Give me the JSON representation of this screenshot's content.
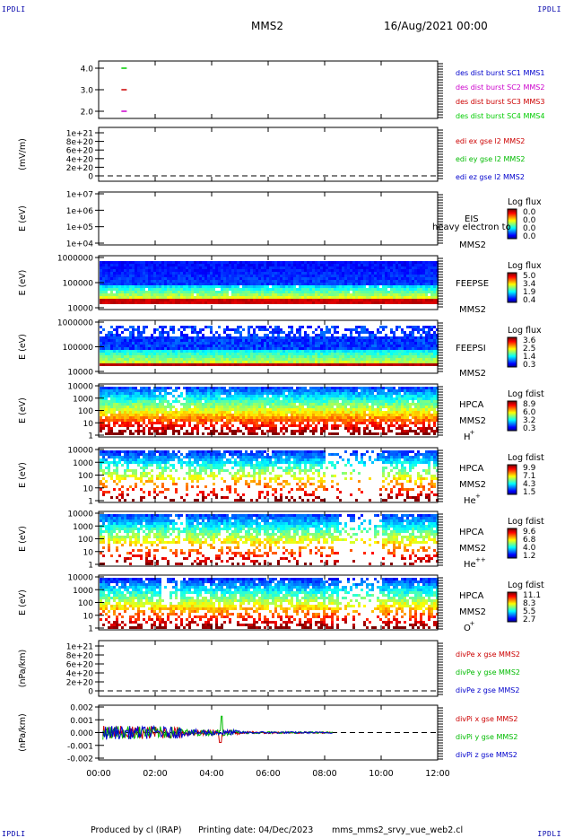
{
  "corner_label": "IPDLI",
  "header": {
    "spacecraft": "MMS2",
    "date": "16/Aug/2021 00:00"
  },
  "footer": {
    "produced_by": "Produced by cl (IRAP)",
    "printing_date": "Printing date: 04/Dec/2023",
    "script": "mms_mms2_srvy_vue_web2.cl"
  },
  "chart_data": [
    {
      "type": "scatter",
      "panel": "burst",
      "ylabel": "",
      "yticks": [
        "4.0",
        "3.0",
        "2.0"
      ],
      "ylim": [
        1.5,
        4.5
      ],
      "x_ticks": [
        "00:00",
        "02:00",
        "04:00",
        "06:00",
        "08:00",
        "10:00",
        "12:00"
      ],
      "xlim_hours": [
        0,
        12
      ],
      "series": [
        {
          "name": "des dist burst SC1 MMS1",
          "color": "#0000cc",
          "points": []
        },
        {
          "name": "des dist burst SC2 MMS2",
          "color": "#cc00cc",
          "points": [
            {
              "x": 0.9,
              "y": 2.0
            }
          ]
        },
        {
          "name": "des dist burst SC3 MMS3",
          "color": "#cc0000",
          "points": [
            {
              "x": 0.9,
              "y": 3.0
            }
          ]
        },
        {
          "name": "des dist burst SC4 MMS4",
          "color": "#00cc00",
          "points": [
            {
              "x": 0.9,
              "y": 4.0
            }
          ]
        }
      ]
    },
    {
      "type": "line",
      "panel": "edi",
      "ylabel": "(mV/m)",
      "yticks": [
        "1e+21",
        "8e+20",
        "6e+20",
        "4e+20",
        "2e+20",
        "0"
      ],
      "series": [
        {
          "name": "edi ex gse l2 MMS2",
          "color": "#cc0000",
          "values": []
        },
        {
          "name": "edi ey gse l2 MMS2",
          "color": "#00bb00",
          "values": []
        },
        {
          "name": "edi ez gse l2 MMS2",
          "color": "#0000cc",
          "values": []
        }
      ],
      "zero_line": true
    },
    {
      "type": "heatmap",
      "panel": "eis",
      "ylabel": "E (eV)",
      "yticks": [
        "1e+07",
        "1e+06",
        "1e+05",
        "1e+04"
      ],
      "instrument": "EIS",
      "extra_label": "heavy electron to",
      "spacecraft": "MMS2",
      "colorbar": {
        "title": "Log flux",
        "ticks": [
          "0.0",
          "0.0",
          "0.0",
          "0.0"
        ]
      }
    },
    {
      "type": "heatmap",
      "panel": "feepse",
      "ylabel": "E (eV)",
      "yticks": [
        "1000000",
        "100000",
        "10000"
      ],
      "instrument": "FEEPSE",
      "spacecraft": "MMS2",
      "colorbar": {
        "title": "Log flux",
        "ticks": [
          "5.0",
          "3.4",
          "1.9",
          "0.4"
        ]
      }
    },
    {
      "type": "heatmap",
      "panel": "feepsi",
      "ylabel": "E (eV)",
      "yticks": [
        "1000000",
        "100000",
        "10000"
      ],
      "instrument": "FEEPSI",
      "spacecraft": "MMS2",
      "colorbar": {
        "title": "Log flux",
        "ticks": [
          "3.6",
          "2.5",
          "1.4",
          "0.3"
        ]
      }
    },
    {
      "type": "heatmap",
      "panel": "hpca-h",
      "ylabel": "E (eV)",
      "yticks": [
        "10000",
        "1000",
        "100",
        "10",
        "1"
      ],
      "instrument": "HPCA",
      "spacecraft": "MMS2",
      "species": "H",
      "charge": "+",
      "colorbar": {
        "title": "Log fdist",
        "ticks": [
          "8.9",
          "6.0",
          "3.2",
          "0.3"
        ]
      }
    },
    {
      "type": "heatmap",
      "panel": "hpca-he",
      "ylabel": "E (eV)",
      "yticks": [
        "10000",
        "1000",
        "100",
        "10",
        "1"
      ],
      "instrument": "HPCA",
      "spacecraft": "MMS2",
      "species": "He",
      "charge": "+",
      "colorbar": {
        "title": "Log fdist",
        "ticks": [
          "9.9",
          "7.1",
          "4.3",
          "1.5"
        ]
      }
    },
    {
      "type": "heatmap",
      "panel": "hpca-he2",
      "ylabel": "E (eV)",
      "yticks": [
        "10000",
        "1000",
        "100",
        "10",
        "1"
      ],
      "instrument": "HPCA",
      "spacecraft": "MMS2",
      "species": "He",
      "charge": "++",
      "colorbar": {
        "title": "Log fdist",
        "ticks": [
          "9.6",
          "6.8",
          "4.0",
          "1.2"
        ]
      }
    },
    {
      "type": "heatmap",
      "panel": "hpca-o",
      "ylabel": "E (eV)",
      "yticks": [
        "10000",
        "1000",
        "100",
        "10",
        "1"
      ],
      "instrument": "HPCA",
      "spacecraft": "MMS2",
      "species": "O",
      "charge": "+",
      "colorbar": {
        "title": "Log fdist",
        "ticks": [
          "11.1",
          "8.3",
          "5.5",
          "2.7"
        ]
      }
    },
    {
      "type": "line",
      "panel": "divpe",
      "ylabel": "(nPa/km)",
      "yticks": [
        "1e+21",
        "8e+20",
        "6e+20",
        "4e+20",
        "2e+20",
        "0"
      ],
      "series": [
        {
          "name": "divPe x gse MMS2",
          "color": "#cc0000",
          "values": []
        },
        {
          "name": "divPe y gse MMS2",
          "color": "#00bb00",
          "values": []
        },
        {
          "name": "divPe z gse MMS2",
          "color": "#0000cc",
          "values": []
        }
      ],
      "zero_line": true
    },
    {
      "type": "line",
      "panel": "divpi",
      "ylabel": "(nPa/km)",
      "yticks": [
        "0.002",
        "0.001",
        "0.000",
        "-0.001",
        "-0.002"
      ],
      "ylim": [
        -0.0025,
        0.0025
      ],
      "xlim_hours": [
        0,
        12
      ],
      "data_span_hours": [
        0.15,
        8.3
      ],
      "series": [
        {
          "name": "divPi x gse MMS2",
          "color": "#cc0000"
        },
        {
          "name": "divPi y gse MMS2",
          "color": "#00bb00"
        },
        {
          "name": "divPi z gse MMS2",
          "color": "#0000cc"
        }
      ],
      "zero_line": true,
      "x_ticks": [
        "00:00",
        "02:00",
        "04:00",
        "06:00",
        "08:00",
        "10:00",
        "12:00"
      ]
    }
  ],
  "colors": {
    "axis": "#000000",
    "corner_text": "#0000aa"
  }
}
